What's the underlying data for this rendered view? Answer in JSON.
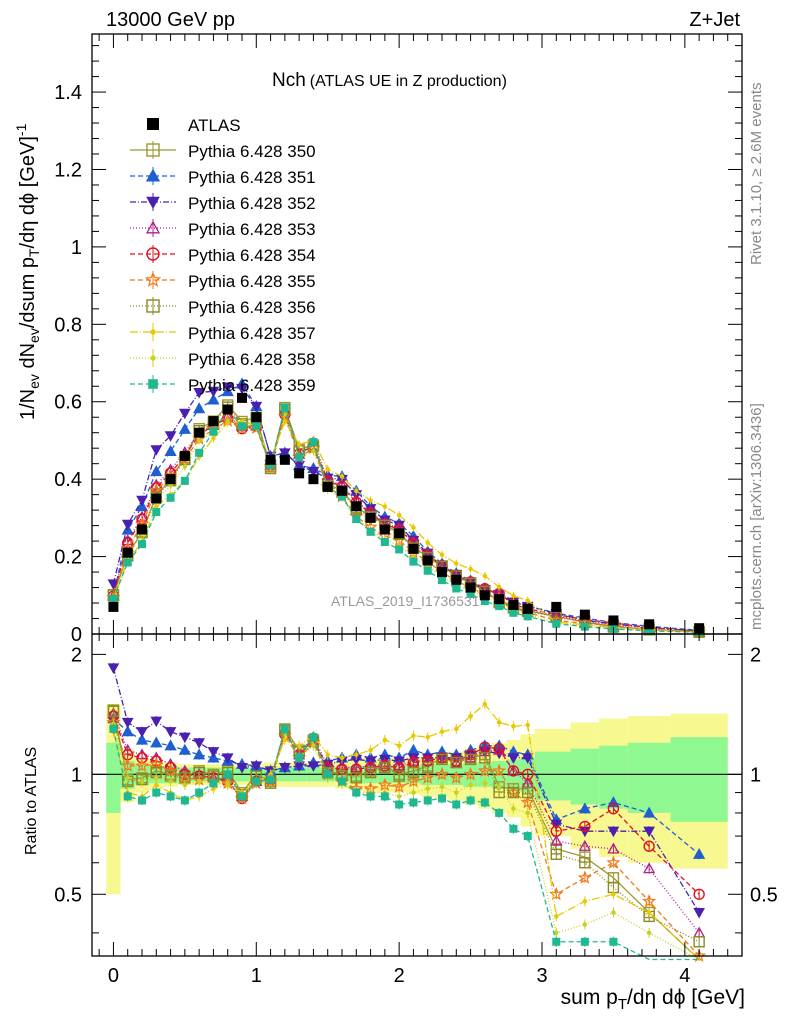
{
  "header": {
    "energy_label": "13000 GeV pp",
    "process_label": "Z+Jet",
    "plot_title_main": "Nch",
    "plot_title_sub": "(ATLAS UE in Z production)",
    "rivet_label": "Rivet 3.1.10, ≥ 2.6M events",
    "mcplots_label": "mcplots.cern.ch [arXiv:1306.3436]",
    "watermark": "ATLAS_2019_I1736531"
  },
  "colors": {
    "data": "#000000",
    "band_inner": "#90f890",
    "band_outer": "#f8f890",
    "s350": "#9a9a30",
    "s351": "#1f5fd0",
    "s352": "#4a20b0",
    "s353": "#b0208a",
    "s354": "#e0101e",
    "s355": "#f07818",
    "s356": "#8a8a20",
    "s357": "#e8c800",
    "s358": "#c8d020",
    "s359": "#20b890"
  },
  "chart_data": [
    {
      "type": "scatter",
      "panel": "main",
      "title": "Nch (ATLAS UE in Z production)",
      "xlabel": "sum p_T/dη dφ [GeV]",
      "ylabel": "1/N_ev dN_ev/dsum p_T/dη dφ [GeV]^-1",
      "xlim": [
        -0.15,
        4.4
      ],
      "ylim": [
        0,
        1.55
      ],
      "y_ticks": [
        "0",
        "0.2",
        "0.4",
        "0.6",
        "0.8",
        "1",
        "1.2",
        "1.4"
      ],
      "x_ticks": [
        "0",
        "1",
        "2",
        "3",
        "4"
      ],
      "x": [
        0.0,
        0.1,
        0.2,
        0.3,
        0.4,
        0.5,
        0.6,
        0.7,
        0.8,
        0.9,
        1.0,
        1.1,
        1.2,
        1.3,
        1.4,
        1.5,
        1.6,
        1.7,
        1.8,
        1.9,
        2.0,
        2.1,
        2.2,
        2.3,
        2.4,
        2.5,
        2.6,
        2.7,
        2.8,
        2.9,
        3.1,
        3.3,
        3.5,
        3.75,
        4.1
      ],
      "atlas": [
        0.07,
        0.21,
        0.27,
        0.35,
        0.4,
        0.46,
        0.52,
        0.55,
        0.58,
        0.61,
        0.56,
        0.45,
        0.45,
        0.415,
        0.4,
        0.38,
        0.37,
        0.33,
        0.3,
        0.27,
        0.26,
        0.22,
        0.19,
        0.16,
        0.14,
        0.12,
        0.1,
        0.09,
        0.075,
        0.065,
        0.07,
        0.05,
        0.035,
        0.025,
        0.015
      ],
      "legend": [
        "ATLAS",
        "Pythia 6.428 350",
        "Pythia 6.428 351",
        "Pythia 6.428 352",
        "Pythia 6.428 353",
        "Pythia 6.428 354",
        "Pythia 6.428 355",
        "Pythia 6.428 356",
        "Pythia 6.428 357",
        "Pythia 6.428 358",
        "Pythia 6.428 359"
      ],
      "series": [
        {
          "name": "Pythia 6.428 350",
          "key": "s350",
          "marker": "square-open",
          "dash": "",
          "ratio": [
            1.45,
            0.97,
            0.98,
            1.02,
            1.0,
            0.99,
            1.02,
            1.0,
            1.02,
            0.9,
            1.0,
            0.96,
            1.3,
            1.15,
            1.22,
            1.02,
            1.0,
            0.99,
            1.02,
            1.05,
            1.0,
            1.02,
            1.05,
            1.1,
            1.08,
            1.1,
            1.12,
            0.93,
            0.92,
            0.92,
            0.65,
            0.62,
            0.55,
            0.45,
            0.3
          ]
        },
        {
          "name": "Pythia 6.428 351",
          "key": "s351",
          "marker": "triangle-up-filled",
          "dash": "5,3",
          "ratio": [
            1.38,
            1.28,
            1.22,
            1.2,
            1.18,
            1.15,
            1.12,
            1.1,
            1.08,
            1.06,
            1.05,
            1.02,
            1.04,
            1.05,
            1.07,
            1.08,
            1.1,
            1.12,
            1.1,
            1.12,
            1.1,
            1.15,
            1.12,
            1.14,
            1.12,
            1.15,
            1.18,
            1.18,
            1.14,
            1.12,
            0.77,
            0.82,
            0.85,
            0.8,
            0.63
          ]
        },
        {
          "name": "Pythia 6.428 352",
          "key": "s352",
          "marker": "triangle-down-filled",
          "dash": "6,2,1,2",
          "ratio": [
            1.85,
            1.35,
            1.28,
            1.36,
            1.28,
            1.24,
            1.2,
            1.14,
            1.1,
            1.04,
            1.05,
            1.02,
            1.04,
            1.05,
            1.05,
            1.06,
            1.08,
            1.09,
            1.08,
            1.09,
            1.08,
            1.1,
            1.1,
            1.1,
            1.1,
            1.12,
            1.14,
            1.13,
            1.1,
            1.1,
            0.75,
            0.72,
            0.72,
            0.72,
            0.45
          ]
        },
        {
          "name": "Pythia 6.428 353",
          "key": "s353",
          "marker": "triangle-up-open",
          "dash": "1,2",
          "ratio": [
            1.42,
            1.15,
            1.12,
            1.1,
            1.06,
            1.02,
            1.0,
            0.98,
            0.97,
            0.88,
            0.96,
            0.97,
            1.28,
            1.12,
            1.24,
            1.05,
            1.04,
            1.04,
            1.05,
            1.06,
            1.05,
            1.08,
            1.08,
            1.1,
            1.07,
            1.1,
            1.14,
            1.15,
            1.02,
            0.95,
            0.68,
            0.66,
            0.65,
            0.58,
            0.4
          ]
        },
        {
          "name": "Pythia 6.428 354",
          "key": "s354",
          "marker": "circle-open",
          "dash": "5,3",
          "ratio": [
            1.4,
            1.12,
            1.1,
            1.08,
            1.04,
            1.0,
            0.99,
            0.98,
            0.96,
            0.87,
            0.96,
            0.97,
            1.26,
            1.12,
            1.22,
            1.04,
            1.03,
            1.03,
            1.04,
            1.05,
            1.04,
            1.07,
            1.08,
            1.1,
            1.08,
            1.12,
            1.17,
            1.16,
            1.02,
            1.0,
            0.72,
            0.74,
            0.82,
            0.66,
            0.5
          ]
        },
        {
          "name": "Pythia 6.428 355",
          "key": "s355",
          "marker": "star-open",
          "dash": "5,3",
          "ratio": [
            1.35,
            1.05,
            1.05,
            1.06,
            1.02,
            0.98,
            0.97,
            0.96,
            0.95,
            0.87,
            0.95,
            0.96,
            1.25,
            1.1,
            1.2,
            1.0,
            0.96,
            0.92,
            0.92,
            0.94,
            0.93,
            0.96,
            0.98,
            1.0,
            0.98,
            1.0,
            1.02,
            1.02,
            0.9,
            0.85,
            0.5,
            0.55,
            0.6,
            0.48,
            0.35
          ]
        },
        {
          "name": "Pythia 6.428 356",
          "key": "s356",
          "marker": "square-open",
          "dash": "1,2",
          "ratio": [
            1.44,
            0.96,
            0.97,
            1.01,
            0.99,
            0.98,
            1.01,
            0.99,
            1.01,
            0.89,
            0.99,
            0.95,
            1.29,
            1.14,
            1.21,
            1.01,
            0.99,
            0.98,
            1.01,
            1.04,
            0.99,
            1.01,
            1.04,
            1.09,
            1.07,
            1.09,
            1.1,
            0.9,
            0.9,
            0.9,
            0.63,
            0.6,
            0.52,
            0.44,
            0.38
          ]
        },
        {
          "name": "Pythia 6.428 357",
          "key": "s357",
          "marker": "dot",
          "dash": "8,2,1,2",
          "ratio": [
            1.28,
            0.9,
            0.88,
            0.94,
            0.9,
            0.86,
            0.88,
            0.92,
            0.94,
            0.9,
            0.96,
            1.0,
            1.22,
            1.18,
            1.25,
            1.12,
            1.1,
            1.12,
            1.15,
            1.22,
            1.18,
            1.25,
            1.24,
            1.28,
            1.3,
            1.4,
            1.5,
            1.35,
            1.32,
            1.33,
            0.44,
            0.48,
            0.5,
            0.45,
            0.3
          ]
        },
        {
          "name": "Pythia 6.428 358",
          "key": "s358",
          "marker": "dot",
          "dash": "1,2",
          "ratio": [
            1.34,
            0.98,
            0.96,
            0.98,
            0.96,
            0.94,
            0.96,
            0.95,
            0.95,
            0.88,
            0.95,
            0.96,
            1.26,
            1.1,
            1.18,
            0.98,
            0.95,
            0.9,
            0.9,
            0.9,
            0.88,
            0.9,
            0.92,
            0.93,
            0.9,
            0.94,
            0.95,
            0.93,
            0.82,
            0.8,
            0.4,
            0.42,
            0.45,
            0.4,
            0.3
          ]
        },
        {
          "name": "Pythia 6.428 359",
          "key": "s359",
          "marker": "square-filled",
          "dash": "5,3",
          "ratio": [
            1.3,
            0.88,
            0.86,
            0.9,
            0.88,
            0.86,
            0.9,
            0.95,
            1.0,
            0.88,
            0.96,
            0.97,
            1.3,
            1.1,
            1.24,
            1.0,
            0.96,
            0.9,
            0.88,
            0.88,
            0.84,
            0.85,
            0.86,
            0.87,
            0.84,
            0.86,
            0.85,
            0.8,
            0.73,
            0.7,
            0.38,
            0.38,
            0.38,
            0.32,
            0.3
          ]
        }
      ]
    },
    {
      "type": "scatter",
      "panel": "ratio",
      "ylabel": "Ratio to ATLAS",
      "xlabel": "sum p_T/dη dφ [GeV]",
      "xlim": [
        -0.15,
        4.4
      ],
      "ylim": [
        0.35,
        2.25
      ],
      "y_ticks": [
        "0.5",
        "1",
        "2"
      ],
      "x_ticks": [
        "0",
        "1",
        "2",
        "3",
        "4"
      ],
      "reference": 1,
      "band_edges": [
        -0.05,
        0.05,
        0.15,
        0.25,
        0.35,
        0.45,
        0.55,
        0.65,
        0.75,
        0.85,
        0.95,
        1.05,
        1.15,
        1.25,
        1.35,
        1.45,
        1.55,
        1.65,
        1.75,
        1.85,
        1.95,
        2.05,
        2.15,
        2.25,
        2.35,
        2.45,
        2.55,
        2.65,
        2.75,
        2.85,
        2.95,
        3.2,
        3.4,
        3.6,
        3.9,
        4.3
      ],
      "band_inner": [
        0.2,
        0.08,
        0.06,
        0.05,
        0.05,
        0.04,
        0.04,
        0.04,
        0.04,
        0.04,
        0.04,
        0.04,
        0.04,
        0.04,
        0.04,
        0.04,
        0.04,
        0.05,
        0.05,
        0.05,
        0.05,
        0.05,
        0.06,
        0.06,
        0.06,
        0.07,
        0.07,
        0.08,
        0.09,
        0.1,
        0.14,
        0.16,
        0.18,
        0.2,
        0.24
      ],
      "band_outer": [
        0.5,
        0.15,
        0.1,
        0.08,
        0.07,
        0.06,
        0.06,
        0.06,
        0.06,
        0.06,
        0.06,
        0.07,
        0.07,
        0.07,
        0.07,
        0.07,
        0.08,
        0.09,
        0.1,
        0.1,
        0.1,
        0.11,
        0.12,
        0.13,
        0.14,
        0.16,
        0.18,
        0.2,
        0.22,
        0.26,
        0.3,
        0.35,
        0.38,
        0.4,
        0.42
      ]
    }
  ]
}
